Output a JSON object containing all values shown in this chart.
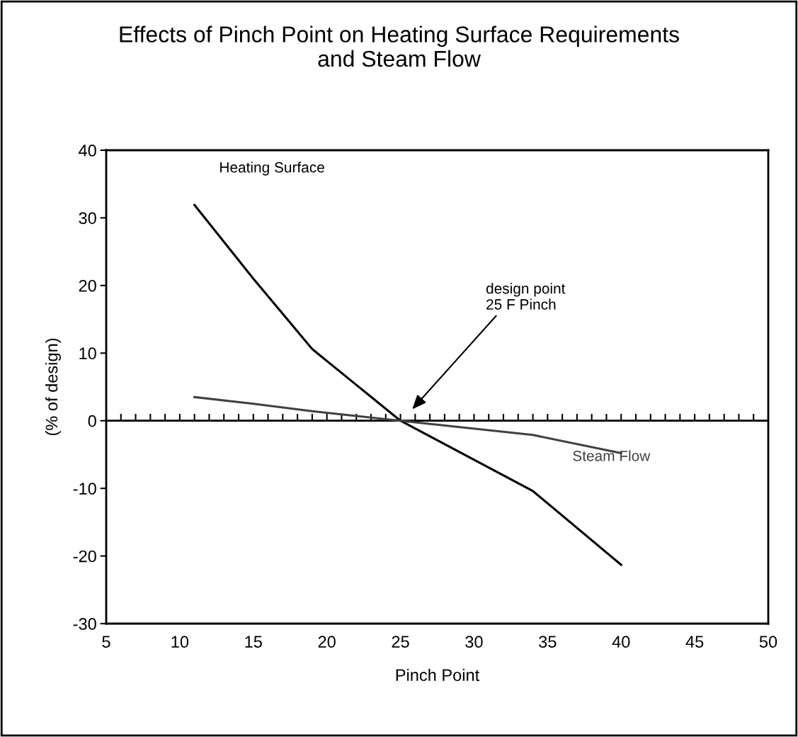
{
  "chart_data": {
    "type": "line",
    "title": "Effects of Pinch Point on Heating Surface Requirements\nand Steam Flow",
    "xlabel": "Pinch Point",
    "ylabel": "(% of design)",
    "x": [
      11,
      15,
      19,
      25,
      34,
      40
    ],
    "series": [
      {
        "name": "Heating Surface",
        "color": "#000000",
        "values": [
          31.9,
          21.0,
          10.6,
          0,
          -10.4,
          -21.3
        ]
      },
      {
        "name": "Steam Flow",
        "color": "#404040",
        "values": [
          3.5,
          2.5,
          1.4,
          0,
          -2.1,
          -4.8
        ]
      }
    ],
    "xlim": [
      5,
      50
    ],
    "ylim": [
      -30,
      40
    ],
    "xticks": [
      5,
      10,
      15,
      20,
      25,
      30,
      35,
      40,
      45,
      50
    ],
    "yticks": [
      -30,
      -20,
      -10,
      0,
      10,
      20,
      30,
      40
    ],
    "grid": false,
    "legend": false,
    "marker": "none",
    "line_style": "solid",
    "ref_lines": [
      {
        "axis": "y",
        "value": 0,
        "color": "#000000"
      }
    ],
    "annotations": [
      "design point\n25 F Pinch"
    ]
  }
}
